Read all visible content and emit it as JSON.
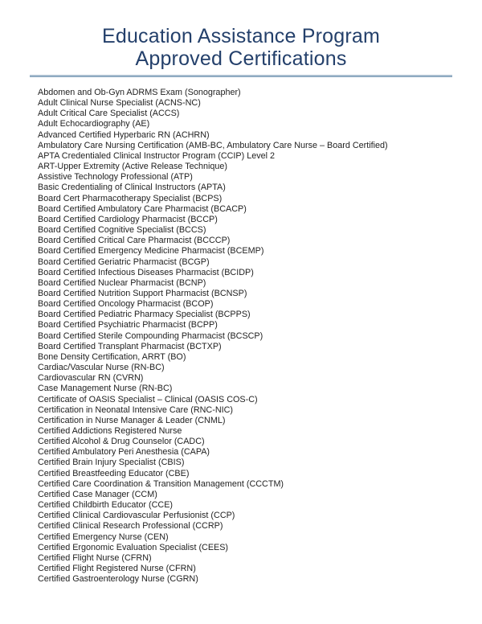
{
  "header": {
    "title_line1": "Education Assistance Program",
    "title_line2": "Approved Certifications",
    "title_color": "#24406b",
    "rule_color": "#7d9cb7"
  },
  "certifications": [
    "Abdomen and Ob-Gyn ADRMS Exam (Sonographer)",
    "Adult Clinical Nurse Specialist (ACNS-NC)",
    "Adult Critical Care Specialist (ACCS)",
    "Adult Echocardiography (AE)",
    "Advanced Certified Hyperbaric RN (ACHRN)",
    "Ambulatory Care Nursing Certification (AMB-BC, Ambulatory Care Nurse – Board Certified)",
    "APTA Credentialed Clinical Instructor Program (CCIP) Level 2",
    "ART-Upper Extremity (Active Release Technique)",
    "Assistive Technology Professional (ATP)",
    "Basic Credentialing of Clinical Instructors (APTA)",
    "Board Cert Pharmacotherapy Specialist (BCPS)",
    "Board Certified Ambulatory Care Pharmacist (BCACP)",
    "Board Certified Cardiology Pharmacist (BCCP)",
    "Board Certified Cognitive Specialist (BCCS)",
    "Board Certified Critical Care Pharmacist (BCCCP)",
    "Board Certified Emergency Medicine Pharmacist (BCEMP)",
    "Board Certified Geriatric Pharmacist (BCGP)",
    "Board Certified Infectious Diseases Pharmacist (BCIDP)",
    "Board Certified Nuclear Pharmacist (BCNP)",
    "Board Certified Nutrition Support Pharmacist (BCNSP)",
    "Board Certified Oncology Pharmacist (BCOP)",
    "Board Certified Pediatric Pharmacy Specialist (BCPPS)",
    "Board Certified Psychiatric Pharmacist (BCPP)",
    "Board Certified Sterile Compounding Pharmacist (BCSCP)",
    "Board Certified Transplant Pharmacist (BCTXP)",
    "Bone Density Certification, ARRT (BO)",
    "Cardiac/Vascular Nurse (RN-BC)",
    "Cardiovascular RN (CVRN)",
    "Case Management Nurse (RN-BC)",
    "Certificate of OASIS Specialist – Clinical (OASIS COS-C)",
    "Certification in Neonatal Intensive Care (RNC-NIC)",
    "Certification in Nurse Manager & Leader (CNML)",
    "Certified Addictions Registered Nurse",
    "Certified Alcohol & Drug Counselor (CADC)",
    "Certified Ambulatory Peri Anesthesia (CAPA)",
    "Certified Brain Injury Specialist (CBIS)",
    "Certified Breastfeeding Educator (CBE)",
    "Certified Care Coordination & Transition Management (CCCTM)",
    "Certified Case Manager (CCM)",
    "Certified Childbirth Educator (CCE)",
    "Certified Clinical Cardiovascular Perfusionist (CCP)",
    "Certified Clinical Research Professional (CCRP)",
    "Certified Emergency Nurse (CEN)",
    "Certified Ergonomic Evaluation Specialist (CEES)",
    "Certified Flight Nurse (CFRN)",
    "Certified Flight Registered Nurse (CFRN)",
    "Certified Gastroenterology Nurse (CGRN)"
  ]
}
